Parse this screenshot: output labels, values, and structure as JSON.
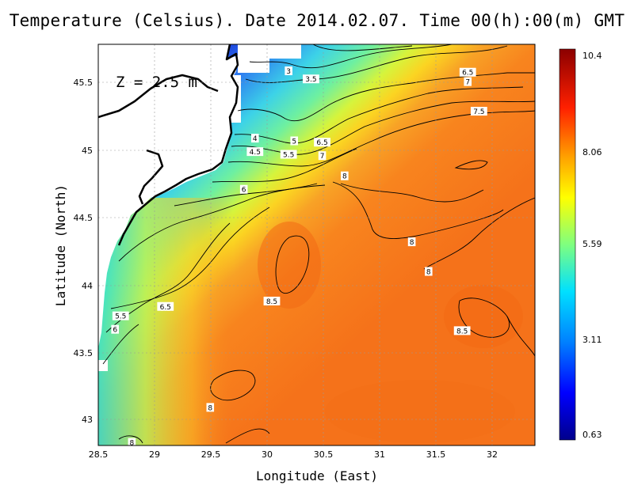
{
  "title": "Temperature (Celsius). Date 2014.02.07. Time 00(h):00(m) GMT",
  "annotation": "Z = 2.5 m",
  "xlabel": "Longitude (East)",
  "ylabel": "Latitude (North)",
  "x_ticks": [
    "28.5",
    "29",
    "29.5",
    "30",
    "30.5",
    "31",
    "31.5",
    "32"
  ],
  "y_ticks": [
    "43",
    "43.5",
    "44",
    "44.5",
    "45",
    "45.5"
  ],
  "colorbar_ticks": [
    "10.4",
    "8.06",
    "5.59",
    "3.11",
    "0.63"
  ],
  "colors": {
    "land": "#ffffff",
    "coast": "#000000",
    "warm_sea": "#f97a1e",
    "cold_sea": "#1f4be0"
  },
  "chart_data": {
    "type": "heatmap",
    "title": "Temperature (Celsius). Date 2014.02.07. Time 00(h):00(m) GMT",
    "xlabel": "Longitude (East)",
    "ylabel": "Latitude (North)",
    "xlim": [
      28.5,
      32.4
    ],
    "ylim": [
      42.82,
      45.8
    ],
    "colorbar_range": [
      0.63,
      10.4
    ],
    "colorbar_ticks": [
      10.4,
      8.06,
      5.59,
      3.11,
      0.63
    ],
    "grid": true,
    "contour_labels": [
      {
        "text": "3",
        "lon": 30.2,
        "lat": 45.6
      },
      {
        "text": "3.5",
        "lon": 30.4,
        "lat": 45.54
      },
      {
        "text": "4",
        "lon": 29.9,
        "lat": 45.1
      },
      {
        "text": "4.5",
        "lon": 29.9,
        "lat": 45.0
      },
      {
        "text": "5",
        "lon": 30.25,
        "lat": 45.08
      },
      {
        "text": "5.5",
        "lon": 30.2,
        "lat": 44.98
      },
      {
        "text": "6.5",
        "lon": 30.5,
        "lat": 45.07
      },
      {
        "text": "7",
        "lon": 30.5,
        "lat": 44.97
      },
      {
        "text": "6.5",
        "lon": 31.8,
        "lat": 45.59
      },
      {
        "text": "7",
        "lon": 31.8,
        "lat": 45.52
      },
      {
        "text": "7.5",
        "lon": 31.9,
        "lat": 45.3
      },
      {
        "text": "6",
        "lon": 29.8,
        "lat": 44.72
      },
      {
        "text": "8",
        "lon": 30.7,
        "lat": 44.82
      },
      {
        "text": "8",
        "lon": 31.3,
        "lat": 44.33
      },
      {
        "text": "8",
        "lon": 31.45,
        "lat": 44.11
      },
      {
        "text": "8.5",
        "lon": 30.05,
        "lat": 43.89
      },
      {
        "text": "8.5",
        "lon": 31.75,
        "lat": 43.67
      },
      {
        "text": "6.5",
        "lon": 29.1,
        "lat": 43.85
      },
      {
        "text": "5.5",
        "lon": 28.7,
        "lat": 43.78
      },
      {
        "text": "6",
        "lon": 28.65,
        "lat": 43.68
      },
      {
        "text": "8",
        "lon": 29.5,
        "lat": 43.1
      },
      {
        "text": "8",
        "lon": 28.8,
        "lat": 42.84
      }
    ]
  }
}
